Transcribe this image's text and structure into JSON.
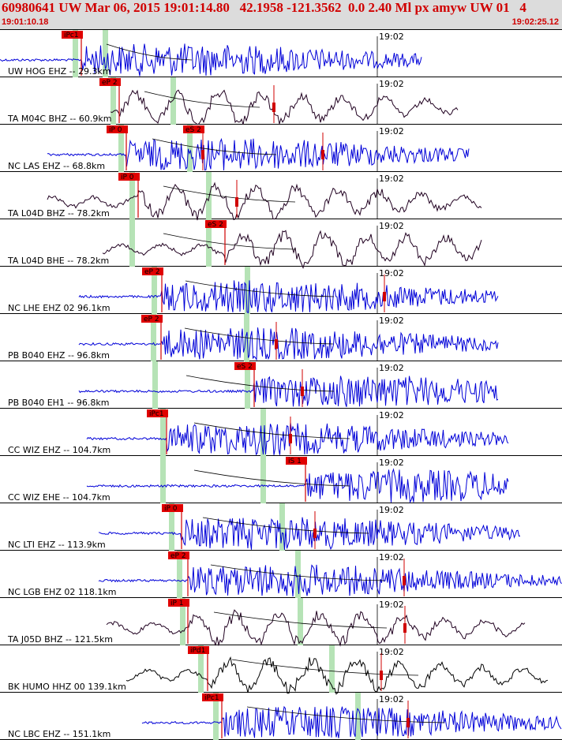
{
  "header": {
    "title": "60980641 UW Mar 06, 2015 19:01:14.80   42.1958 -121.3562  0.0 2.40 Ml px amyw UW 01   4",
    "start_time": "19:01:10.18",
    "end_time": "19:02:25.12"
  },
  "minute_tick": "19:02",
  "colors": {
    "title": "#d00000",
    "pick_box": "#e00000",
    "window": "#b6e3b6",
    "blue_trace": "#0000d8",
    "dark_trace": "#200020",
    "black_trace": "#000000"
  },
  "stations": [
    {
      "label": "UW HOG EHZ -- 29.3km",
      "picks": [
        "iPc1"
      ],
      "trace_color": "blue"
    },
    {
      "label": "TA M04C BHZ -- 60.9km",
      "picks": [
        "eP 2"
      ],
      "trace_color": "dark"
    },
    {
      "label": "NC LAS EHZ -- 68.8km",
      "picks": [
        "iP 0",
        "eS 2"
      ],
      "trace_color": "blue"
    },
    {
      "label": "TA L04D BHZ -- 78.2km",
      "picks": [
        "iP 0"
      ],
      "trace_color": "dark"
    },
    {
      "label": "TA L04D BHE -- 78.2km",
      "picks": [
        "eS 2"
      ],
      "trace_color": "dark"
    },
    {
      "label": "NC LHE EHZ 02 96.1km",
      "picks": [
        "eP 2"
      ],
      "trace_color": "blue"
    },
    {
      "label": "PB B040 EHZ -- 96.8km",
      "picks": [
        "eP 2"
      ],
      "trace_color": "blue"
    },
    {
      "label": "PB B040 EH1 -- 96.8km",
      "picks": [
        "eS 2"
      ],
      "trace_color": "blue"
    },
    {
      "label": "CC WIZ EHZ -- 104.7km",
      "picks": [
        "iPc1"
      ],
      "trace_color": "blue"
    },
    {
      "label": "CC WIZ EHE -- 104.7km",
      "picks": [
        "iS 1"
      ],
      "trace_color": "blue"
    },
    {
      "label": "NC LTI EHZ -- 113.9km",
      "picks": [
        "iP 0"
      ],
      "trace_color": "blue"
    },
    {
      "label": "NC LGB EHZ 02 118.1km",
      "picks": [
        "eP 2"
      ],
      "trace_color": "blue"
    },
    {
      "label": "TA J05D BHZ -- 121.5km",
      "picks": [
        "iP 1"
      ],
      "trace_color": "dark"
    },
    {
      "label": "BK HUMO HHZ 00 139.1km",
      "picks": [
        "iPd1"
      ],
      "trace_color": "black"
    },
    {
      "label": "NC LBC EHZ -- 151.1km",
      "picks": [
        "iPc1"
      ],
      "trace_color": "blue"
    }
  ]
}
